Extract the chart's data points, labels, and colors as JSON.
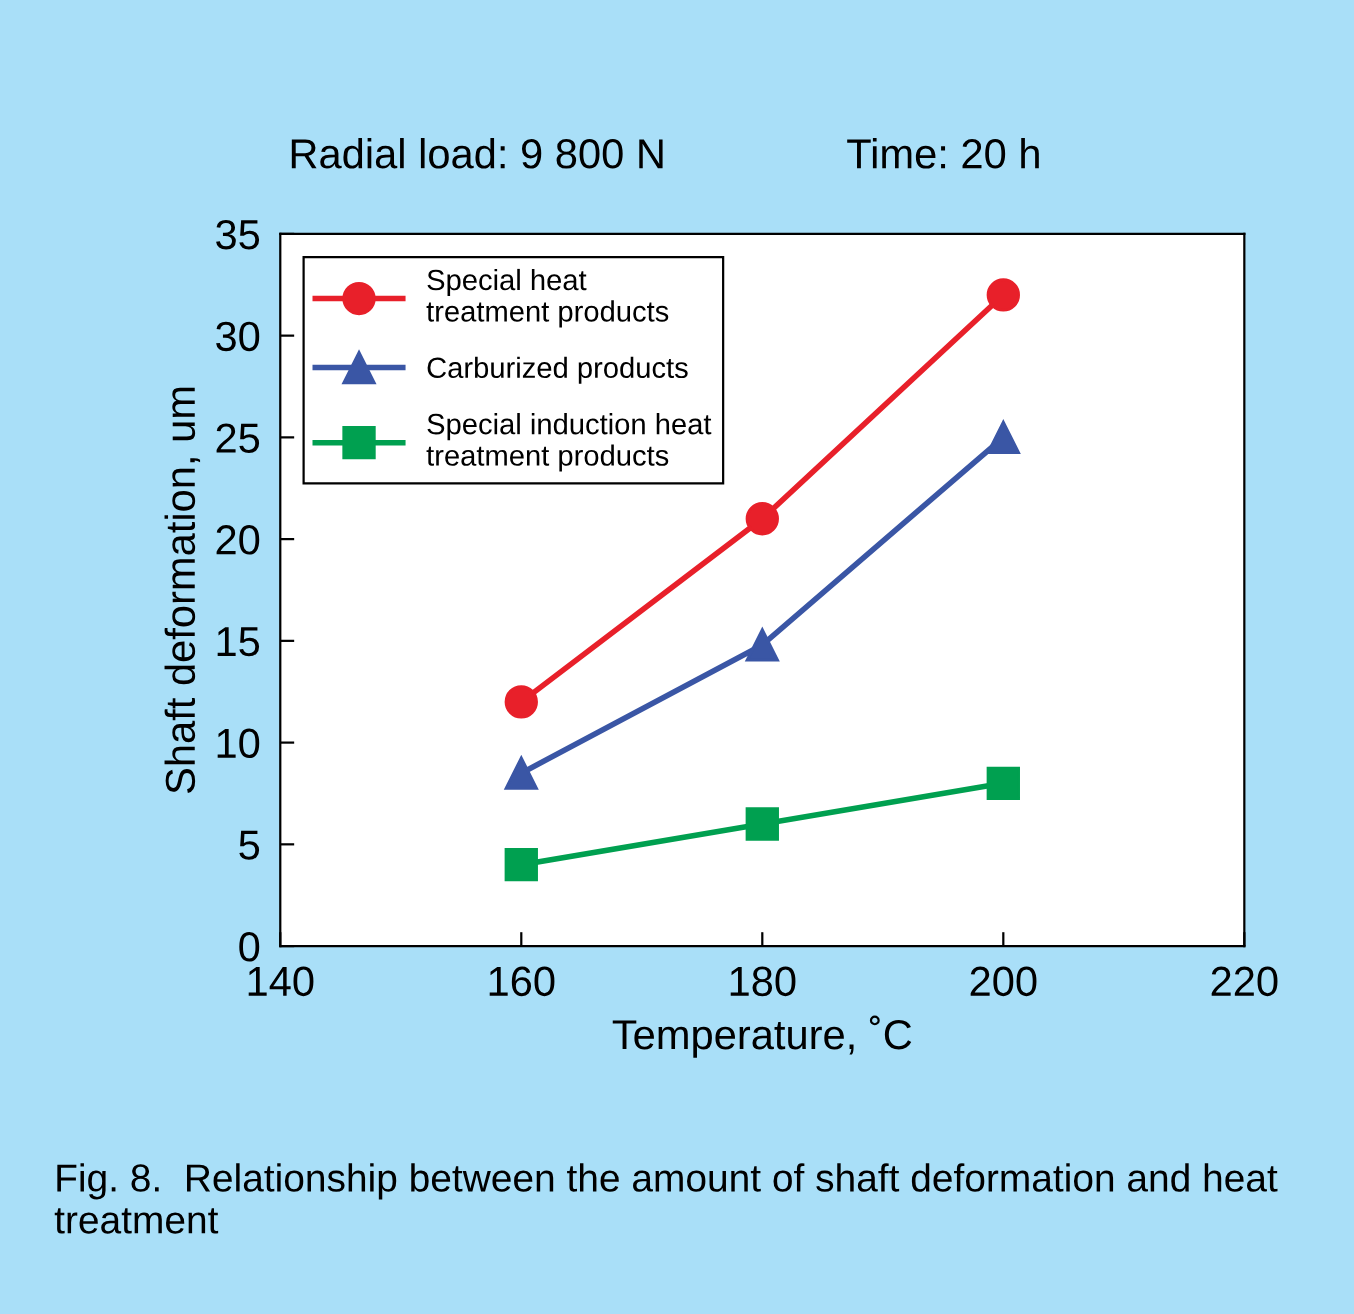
{
  "chart_data": {
    "type": "line",
    "title": "Radial load: 9 800 N",
    "subtitle": "Time: 20 h",
    "xlabel": "Temperature, ˚C",
    "ylabel": "Shaft deformation, um",
    "annotations": [
      "Fig. 8.  Relationship between the amount of shaft deformation and heat treatment"
    ],
    "x": [
      160,
      180,
      200
    ],
    "series": [
      {
        "name": "Special heat\ntreatment products",
        "color": "#e8202a",
        "marker": "circle",
        "values": [
          12,
          21,
          32
        ]
      },
      {
        "name": "Carburized products",
        "color": "#3a56a5",
        "marker": "triangle",
        "values": [
          8.5,
          14.8,
          25
        ]
      },
      {
        "name": "Special induction heat\ntreatment products",
        "color": "#00a050",
        "marker": "square",
        "values": [
          4,
          6,
          8
        ]
      }
    ],
    "xlim": [
      140,
      220
    ],
    "xticks": [
      140,
      160,
      180,
      200,
      220
    ],
    "ylim": [
      0,
      35
    ],
    "yticks": [
      0,
      5,
      10,
      15,
      20,
      25,
      30,
      35
    ],
    "grid": false,
    "legend": "top left"
  }
}
